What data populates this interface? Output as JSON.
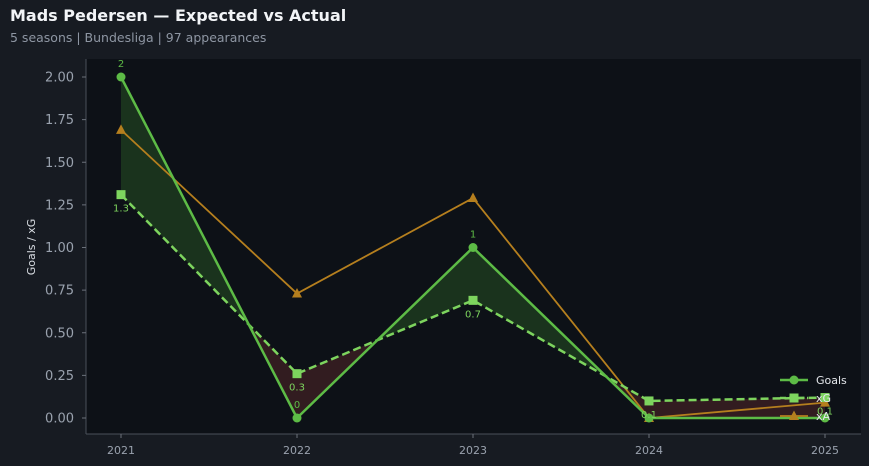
{
  "header": {
    "title": "Mads Pedersen — Expected vs Actual",
    "subtitle": "5 seasons | Bundesliga | 97 appearances"
  },
  "colors": {
    "goals": "#5dbb46",
    "xg": "#7dd45e",
    "xa": "#b57f1e",
    "over_fill": "#1d3a1f",
    "under_fill": "#3a1f22"
  },
  "chart_data": {
    "type": "line",
    "title": "Mads Pedersen — Expected vs Actual",
    "subtitle": "5 seasons | Bundesliga | 97 appearances",
    "xlabel": "",
    "ylabel": "Goals / xG",
    "categories": [
      "2021",
      "2022",
      "2023",
      "2024",
      "2025"
    ],
    "ylim": [
      -0.1,
      2.1
    ],
    "yticks": [
      "0.00",
      "0.25",
      "0.50",
      "0.75",
      "1.00",
      "1.25",
      "1.50",
      "1.75",
      "2.00"
    ],
    "grid": false,
    "legend_position": "bottom-right",
    "series": [
      {
        "name": "Goals",
        "values": [
          2,
          0,
          1,
          0,
          0
        ],
        "labels": [
          "2",
          "0",
          "1",
          "",
          ""
        ],
        "style": "solid",
        "marker": "circle"
      },
      {
        "name": "xG",
        "values": [
          1.31,
          0.26,
          0.69,
          0.1,
          0.12
        ],
        "labels": [
          "1.3",
          "0.3",
          "0.7",
          "0.1",
          "0.1"
        ],
        "style": "dashed",
        "marker": "square"
      },
      {
        "name": "xA",
        "values": [
          1.69,
          0.73,
          1.29,
          0.0,
          0.09
        ],
        "labels": [
          "",
          "",
          "",
          "",
          ""
        ],
        "style": "solid",
        "marker": "triangle"
      }
    ]
  }
}
